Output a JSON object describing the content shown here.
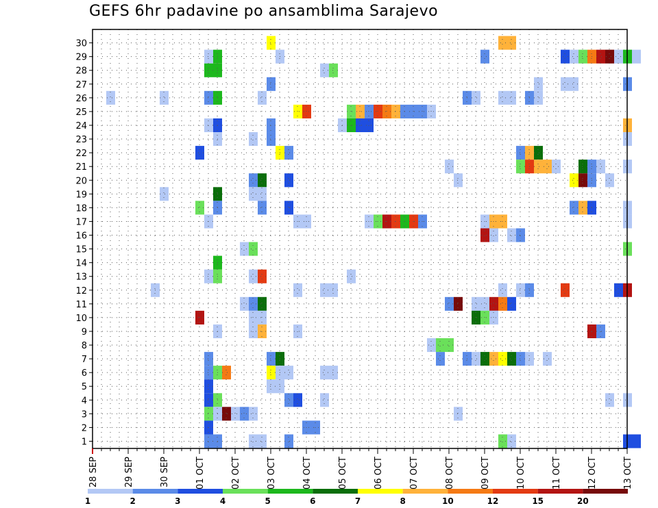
{
  "chart_data": {
    "type": "heatmap",
    "title": "GEFS 6hr padavine po ansamblima Sarajevo",
    "xlabel": "",
    "ylabel": "",
    "grid": true,
    "y_ticks": [
      1,
      2,
      3,
      4,
      5,
      6,
      7,
      8,
      9,
      10,
      11,
      12,
      13,
      14,
      15,
      16,
      17,
      18,
      19,
      20,
      21,
      22,
      23,
      24,
      25,
      26,
      27,
      28,
      29,
      30
    ],
    "x_ticks": [
      "28 SEP",
      "29 SEP",
      "30 SEP",
      "01 OCT",
      "02 OCT",
      "03 OCT",
      "04 OCT",
      "05 OCT",
      "06 OCT",
      "07 OCT",
      "08 OCT",
      "09 OCT",
      "10 OCT",
      "11 OCT",
      "12 OCT",
      "13 OCT"
    ],
    "color_scale": {
      "labels": [
        "1",
        "2",
        "3",
        "4",
        "5",
        "6",
        "7",
        "8",
        "10",
        "12",
        "15",
        "20"
      ],
      "colors": [
        "#b3c8f5",
        "#5b8be8",
        "#1f4ee0",
        "#6ae05a",
        "#1db81d",
        "#0a6e0a",
        "#ffff00",
        "#ffb23a",
        "#f57a14",
        "#e33a12",
        "#b31412",
        "#770a0a"
      ]
    },
    "cells": [
      [
        30,
        5.0,
        7
      ],
      [
        30,
        11.5,
        8
      ],
      [
        30,
        11.75,
        8
      ],
      [
        29,
        3.25,
        1
      ],
      [
        29,
        3.5,
        5
      ],
      [
        29,
        5.25,
        1
      ],
      [
        29,
        11.0,
        2
      ],
      [
        29,
        13.25,
        3
      ],
      [
        29,
        13.5,
        1
      ],
      [
        29,
        13.75,
        4
      ],
      [
        29,
        14.0,
        9
      ],
      [
        29,
        14.25,
        11
      ],
      [
        29,
        14.5,
        12
      ],
      [
        29,
        14.75,
        1
      ],
      [
        29,
        15.0,
        5
      ],
      [
        29,
        15.25,
        1
      ],
      [
        28,
        3.25,
        5
      ],
      [
        28,
        3.5,
        5
      ],
      [
        28,
        6.5,
        1
      ],
      [
        28,
        6.75,
        4
      ],
      [
        27,
        5.0,
        2
      ],
      [
        27,
        12.5,
        1
      ],
      [
        27,
        13.25,
        1
      ],
      [
        27,
        13.5,
        1
      ],
      [
        27,
        15.0,
        2
      ],
      [
        26,
        0.5,
        1
      ],
      [
        26,
        2.0,
        1
      ],
      [
        26,
        3.25,
        2
      ],
      [
        26,
        3.5,
        5
      ],
      [
        26,
        4.75,
        1
      ],
      [
        26,
        10.5,
        2
      ],
      [
        26,
        10.75,
        1
      ],
      [
        26,
        11.5,
        1
      ],
      [
        26,
        11.75,
        1
      ],
      [
        26,
        12.25,
        2
      ],
      [
        26,
        12.5,
        1
      ],
      [
        25,
        5.75,
        7
      ],
      [
        25,
        6.0,
        10
      ],
      [
        25,
        7.25,
        4
      ],
      [
        25,
        7.5,
        8
      ],
      [
        25,
        7.75,
        2
      ],
      [
        25,
        8.0,
        10
      ],
      [
        25,
        8.25,
        9
      ],
      [
        25,
        8.5,
        8
      ],
      [
        25,
        8.75,
        2
      ],
      [
        25,
        9.0,
        2
      ],
      [
        25,
        9.25,
        2
      ],
      [
        25,
        9.5,
        1
      ],
      [
        24,
        3.25,
        1
      ],
      [
        24,
        3.5,
        3
      ],
      [
        24,
        5.0,
        2
      ],
      [
        24,
        7.0,
        1
      ],
      [
        24,
        7.25,
        5
      ],
      [
        24,
        7.5,
        3
      ],
      [
        24,
        7.75,
        3
      ],
      [
        24,
        15.0,
        8
      ],
      [
        23,
        3.5,
        1
      ],
      [
        23,
        4.5,
        1
      ],
      [
        23,
        5.0,
        2
      ],
      [
        23,
        15.0,
        1
      ],
      [
        22,
        3.0,
        3
      ],
      [
        22,
        5.25,
        7
      ],
      [
        22,
        5.5,
        2
      ],
      [
        22,
        12.0,
        2
      ],
      [
        22,
        12.25,
        8
      ],
      [
        22,
        12.5,
        6
      ],
      [
        21,
        10.0,
        1
      ],
      [
        21,
        12.0,
        4
      ],
      [
        21,
        12.25,
        10
      ],
      [
        21,
        12.5,
        8
      ],
      [
        21,
        12.75,
        8
      ],
      [
        21,
        13.0,
        1
      ],
      [
        21,
        13.75,
        6
      ],
      [
        21,
        14.0,
        2
      ],
      [
        21,
        14.25,
        1
      ],
      [
        21,
        15.0,
        1
      ],
      [
        20,
        4.5,
        2
      ],
      [
        20,
        4.75,
        6
      ],
      [
        20,
        5.5,
        3
      ],
      [
        20,
        10.25,
        1
      ],
      [
        20,
        13.5,
        7
      ],
      [
        20,
        13.75,
        12
      ],
      [
        20,
        14.0,
        2
      ],
      [
        20,
        14.5,
        1
      ],
      [
        19,
        2.0,
        1
      ],
      [
        19,
        3.5,
        6
      ],
      [
        19,
        4.5,
        1
      ],
      [
        19,
        4.75,
        1
      ],
      [
        18,
        3.0,
        4
      ],
      [
        18,
        3.5,
        2
      ],
      [
        18,
        4.75,
        2
      ],
      [
        18,
        5.5,
        3
      ],
      [
        18,
        13.5,
        2
      ],
      [
        18,
        13.75,
        8
      ],
      [
        18,
        14.0,
        3
      ],
      [
        18,
        15.0,
        1
      ],
      [
        17,
        3.25,
        1
      ],
      [
        17,
        5.75,
        1
      ],
      [
        17,
        6.0,
        1
      ],
      [
        17,
        7.75,
        1
      ],
      [
        17,
        8.0,
        4
      ],
      [
        17,
        8.25,
        11
      ],
      [
        17,
        8.5,
        10
      ],
      [
        17,
        8.75,
        5
      ],
      [
        17,
        9.0,
        10
      ],
      [
        17,
        9.25,
        2
      ],
      [
        17,
        11.0,
        1
      ],
      [
        17,
        11.25,
        8
      ],
      [
        17,
        11.5,
        8
      ],
      [
        17,
        15.0,
        1
      ],
      [
        16,
        11.0,
        11
      ],
      [
        16,
        11.25,
        1
      ],
      [
        16,
        11.75,
        1
      ],
      [
        16,
        12.0,
        2
      ],
      [
        15,
        4.25,
        1
      ],
      [
        15,
        4.5,
        4
      ],
      [
        15,
        15.0,
        4
      ],
      [
        14,
        3.5,
        5
      ],
      [
        13,
        3.25,
        1
      ],
      [
        13,
        3.5,
        4
      ],
      [
        13,
        4.5,
        1
      ],
      [
        13,
        4.75,
        10
      ],
      [
        13,
        7.25,
        1
      ],
      [
        12,
        1.75,
        1
      ],
      [
        12,
        5.75,
        1
      ],
      [
        12,
        6.5,
        1
      ],
      [
        12,
        6.75,
        1
      ],
      [
        12,
        11.5,
        1
      ],
      [
        12,
        12.0,
        1
      ],
      [
        12,
        12.25,
        2
      ],
      [
        12,
        13.25,
        10
      ],
      [
        12,
        14.75,
        3
      ],
      [
        12,
        15.0,
        11
      ],
      [
        11,
        4.25,
        1
      ],
      [
        11,
        4.5,
        2
      ],
      [
        11,
        4.75,
        6
      ],
      [
        11,
        10.0,
        2
      ],
      [
        11,
        10.25,
        12
      ],
      [
        11,
        10.75,
        1
      ],
      [
        11,
        11.0,
        1
      ],
      [
        11,
        11.25,
        11
      ],
      [
        11,
        11.5,
        9
      ],
      [
        11,
        11.75,
        3
      ],
      [
        10,
        3.0,
        11
      ],
      [
        10,
        4.5,
        1
      ],
      [
        10,
        4.75,
        1
      ],
      [
        10,
        10.75,
        6
      ],
      [
        10,
        11.0,
        4
      ],
      [
        10,
        11.25,
        1
      ],
      [
        9,
        3.5,
        1
      ],
      [
        9,
        4.5,
        1
      ],
      [
        9,
        4.75,
        8
      ],
      [
        9,
        5.75,
        1
      ],
      [
        9,
        14.0,
        11
      ],
      [
        9,
        14.25,
        2
      ],
      [
        8,
        9.5,
        1
      ],
      [
        8,
        9.75,
        4
      ],
      [
        8,
        10.0,
        4
      ],
      [
        7,
        3.25,
        2
      ],
      [
        7,
        5.0,
        2
      ],
      [
        7,
        5.25,
        6
      ],
      [
        7,
        9.75,
        2
      ],
      [
        7,
        10.5,
        2
      ],
      [
        7,
        10.75,
        1
      ],
      [
        7,
        11.0,
        6
      ],
      [
        7,
        11.25,
        8
      ],
      [
        7,
        11.5,
        7
      ],
      [
        7,
        11.75,
        6
      ],
      [
        7,
        12.0,
        2
      ],
      [
        7,
        12.25,
        1
      ],
      [
        7,
        12.75,
        1
      ],
      [
        6,
        3.25,
        2
      ],
      [
        6,
        3.5,
        4
      ],
      [
        6,
        3.75,
        9
      ],
      [
        6,
        5.0,
        7
      ],
      [
        6,
        5.25,
        1
      ],
      [
        6,
        5.5,
        1
      ],
      [
        6,
        6.5,
        1
      ],
      [
        6,
        6.75,
        1
      ],
      [
        5,
        3.25,
        3
      ],
      [
        5,
        5.0,
        1
      ],
      [
        5,
        5.25,
        1
      ],
      [
        4,
        3.25,
        3
      ],
      [
        4,
        3.5,
        4
      ],
      [
        4,
        5.5,
        2
      ],
      [
        4,
        5.75,
        3
      ],
      [
        4,
        6.5,
        1
      ],
      [
        4,
        14.5,
        1
      ],
      [
        4,
        15.0,
        1
      ],
      [
        3,
        3.25,
        4
      ],
      [
        3,
        3.5,
        1
      ],
      [
        3,
        3.75,
        12
      ],
      [
        3,
        4.0,
        1
      ],
      [
        3,
        4.25,
        2
      ],
      [
        3,
        4.5,
        1
      ],
      [
        3,
        10.25,
        1
      ],
      [
        2,
        3.25,
        3
      ],
      [
        2,
        6.0,
        2
      ],
      [
        2,
        6.25,
        2
      ],
      [
        1,
        3.25,
        2
      ],
      [
        1,
        3.5,
        2
      ],
      [
        1,
        4.5,
        1
      ],
      [
        1,
        4.75,
        1
      ],
      [
        1,
        5.5,
        2
      ],
      [
        1,
        11.5,
        4
      ],
      [
        1,
        11.75,
        1
      ],
      [
        1,
        15.0,
        3
      ],
      [
        1,
        15.25,
        3
      ]
    ]
  }
}
